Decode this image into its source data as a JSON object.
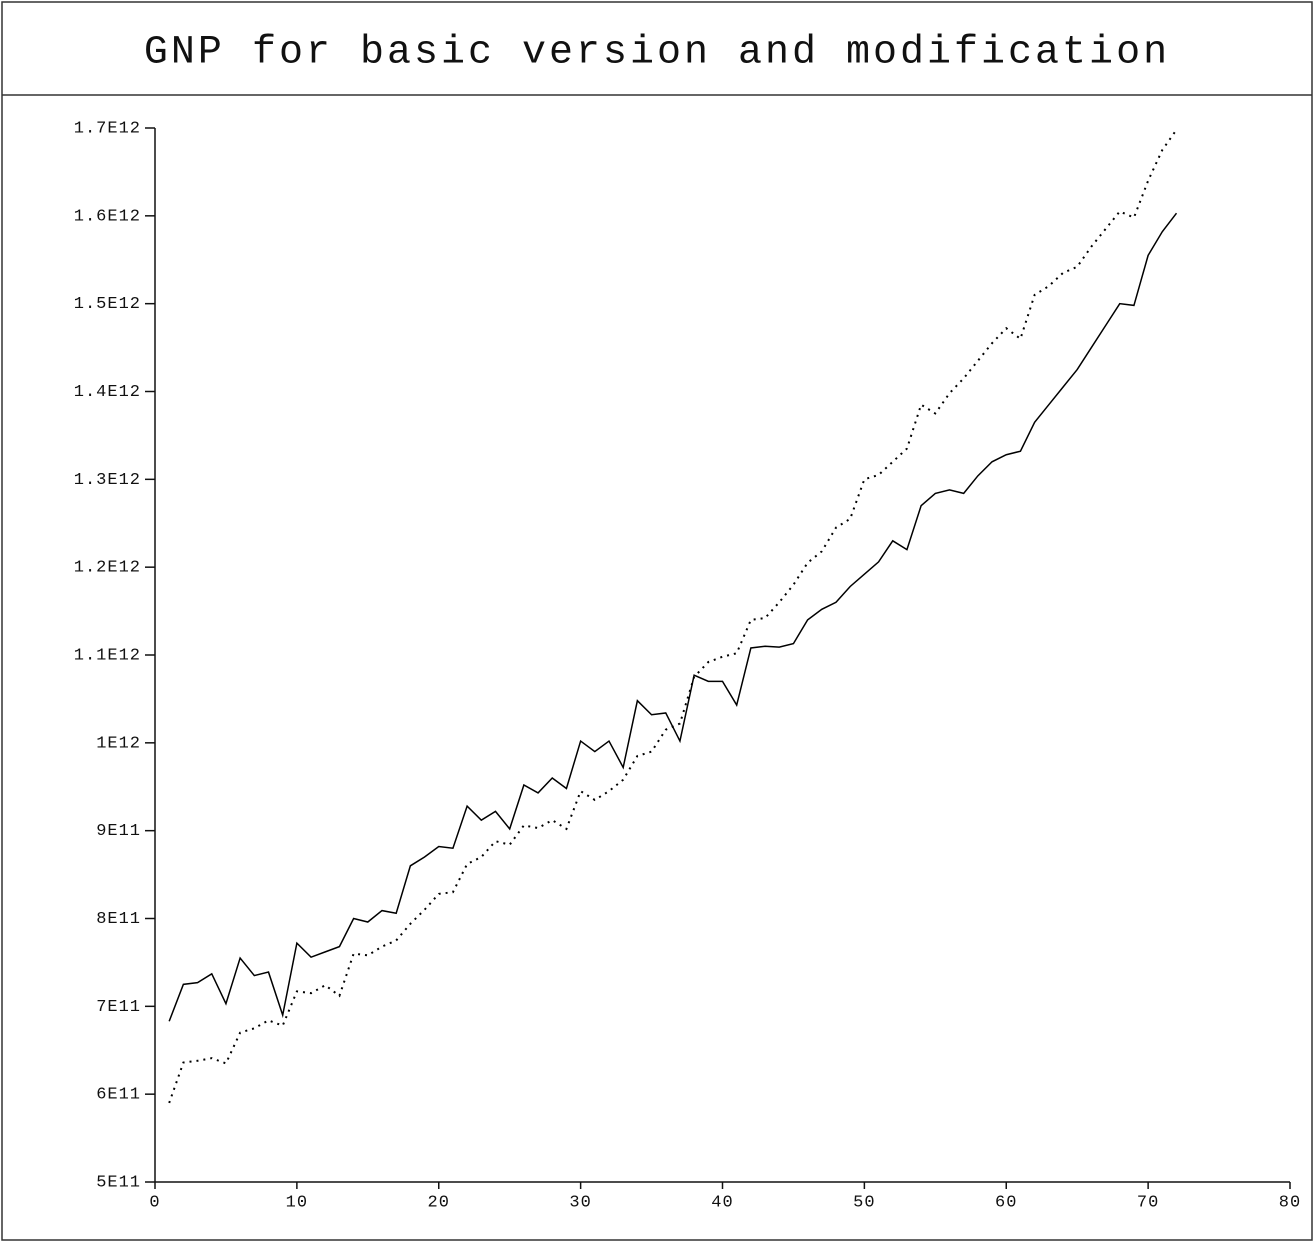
{
  "chart_data": {
    "type": "line",
    "title": "GNP for basic version and modification",
    "x": [
      1,
      2,
      3,
      4,
      5,
      6,
      7,
      8,
      9,
      10,
      11,
      12,
      13,
      14,
      15,
      16,
      17,
      18,
      19,
      20,
      21,
      22,
      23,
      24,
      25,
      26,
      27,
      28,
      29,
      30,
      31,
      32,
      33,
      34,
      35,
      36,
      37,
      38,
      39,
      40,
      41,
      42,
      43,
      44,
      45,
      46,
      47,
      48,
      49,
      50,
      51,
      52,
      53,
      54,
      55,
      56,
      57,
      58,
      59,
      60,
      61,
      62,
      63,
      64,
      65,
      66,
      67,
      68,
      69,
      70,
      71,
      72
    ],
    "series": [
      {
        "color": "#000000",
        "dash": "solid",
        "values": [
          683000000000.0,
          725000000000.0,
          727000000000.0,
          737000000000.0,
          703000000000.0,
          755000000000.0,
          735000000000.0,
          739000000000.0,
          690000000000.0,
          772000000000.0,
          756000000000.0,
          762000000000.0,
          768000000000.0,
          800000000000.0,
          796000000000.0,
          809000000000.0,
          806000000000.0,
          860000000000.0,
          870000000000.0,
          882000000000.0,
          880000000000.0,
          928000000000.0,
          912000000000.0,
          922000000000.0,
          902000000000.0,
          952000000000.0,
          943000000000.0,
          960000000000.0,
          948000000000.0,
          1002000000000.0,
          990000000000.0,
          1002000000000.0,
          972000000000.0,
          1048000000000.0,
          1032000000000.0,
          1034000000000.0,
          1002000000000.0,
          1077000000000.0,
          1070000000000.0,
          1070000000000.0,
          1043000000000.0,
          1108000000000.0,
          1110000000000.0,
          1109000000000.0,
          1113000000000.0,
          1140000000000.0,
          1152000000000.0,
          1160000000000.0,
          1178000000000.0,
          1192000000000.0,
          1206000000000.0,
          1230000000000.0,
          1220000000000.0,
          1270000000000.0,
          1284000000000.0,
          1288000000000.0,
          1284000000000.0,
          1304000000000.0,
          1320000000000.0,
          1328000000000.0,
          1332000000000.0,
          1365000000000.0,
          1385000000000.0,
          1405000000000.0,
          1425000000000.0,
          1450000000000.0,
          1475000000000.0,
          1500000000000.0,
          1498000000000.0,
          1555000000000.0,
          1582000000000.0,
          1603000000000.0
        ]
      },
      {
        "color": "#000000",
        "dash": "dotted",
        "values": [
          590000000000.0,
          636000000000.0,
          638000000000.0,
          641000000000.0,
          635000000000.0,
          670000000000.0,
          675000000000.0,
          684000000000.0,
          678000000000.0,
          717000000000.0,
          715000000000.0,
          724000000000.0,
          712000000000.0,
          760000000000.0,
          758000000000.0,
          768000000000.0,
          775000000000.0,
          794000000000.0,
          810000000000.0,
          828000000000.0,
          830000000000.0,
          862000000000.0,
          870000000000.0,
          888000000000.0,
          884000000000.0,
          906000000000.0,
          903000000000.0,
          912000000000.0,
          902000000000.0,
          945000000000.0,
          935000000000.0,
          945000000000.0,
          958000000000.0,
          985000000000.0,
          990000000000.0,
          1015000000000.0,
          1022000000000.0,
          1075000000000.0,
          1092000000000.0,
          1098000000000.0,
          1102000000000.0,
          1140000000000.0,
          1142000000000.0,
          1160000000000.0,
          1180000000000.0,
          1205000000000.0,
          1218000000000.0,
          1245000000000.0,
          1255000000000.0,
          1300000000000.0,
          1305000000000.0,
          1320000000000.0,
          1335000000000.0,
          1385000000000.0,
          1375000000000.0,
          1398000000000.0,
          1415000000000.0,
          1435000000000.0,
          1455000000000.0,
          1472000000000.0,
          1460000000000.0,
          1510000000000.0,
          1520000000000.0,
          1535000000000.0,
          1542000000000.0,
          1565000000000.0,
          1585000000000.0,
          1605000000000.0,
          1598000000000.0,
          1640000000000.0,
          1675000000000.0,
          1698000000000.0
        ]
      }
    ],
    "xlim": [
      0,
      80
    ],
    "xticks": [
      0,
      10,
      20,
      30,
      40,
      50,
      60,
      70,
      80
    ],
    "ylim": [
      500000000000.0,
      1700000000000.0
    ],
    "yticks": [
      {
        "value": 500000000000.0,
        "label": "5E11"
      },
      {
        "value": 600000000000.0,
        "label": "6E11"
      },
      {
        "value": 700000000000.0,
        "label": "7E11"
      },
      {
        "value": 800000000000.0,
        "label": "8E11"
      },
      {
        "value": 900000000000.0,
        "label": "9E11"
      },
      {
        "value": 1000000000000.0,
        "label": "1E12"
      },
      {
        "value": 1100000000000.0,
        "label": "1.1E12"
      },
      {
        "value": 1200000000000.0,
        "label": "1.2E12"
      },
      {
        "value": 1300000000000.0,
        "label": "1.3E12"
      },
      {
        "value": 1400000000000.0,
        "label": "1.4E12"
      },
      {
        "value": 1500000000000.0,
        "label": "1.5E12"
      },
      {
        "value": 1600000000000.0,
        "label": "1.6E12"
      },
      {
        "value": 1700000000000.0,
        "label": "1.7E12"
      }
    ]
  }
}
